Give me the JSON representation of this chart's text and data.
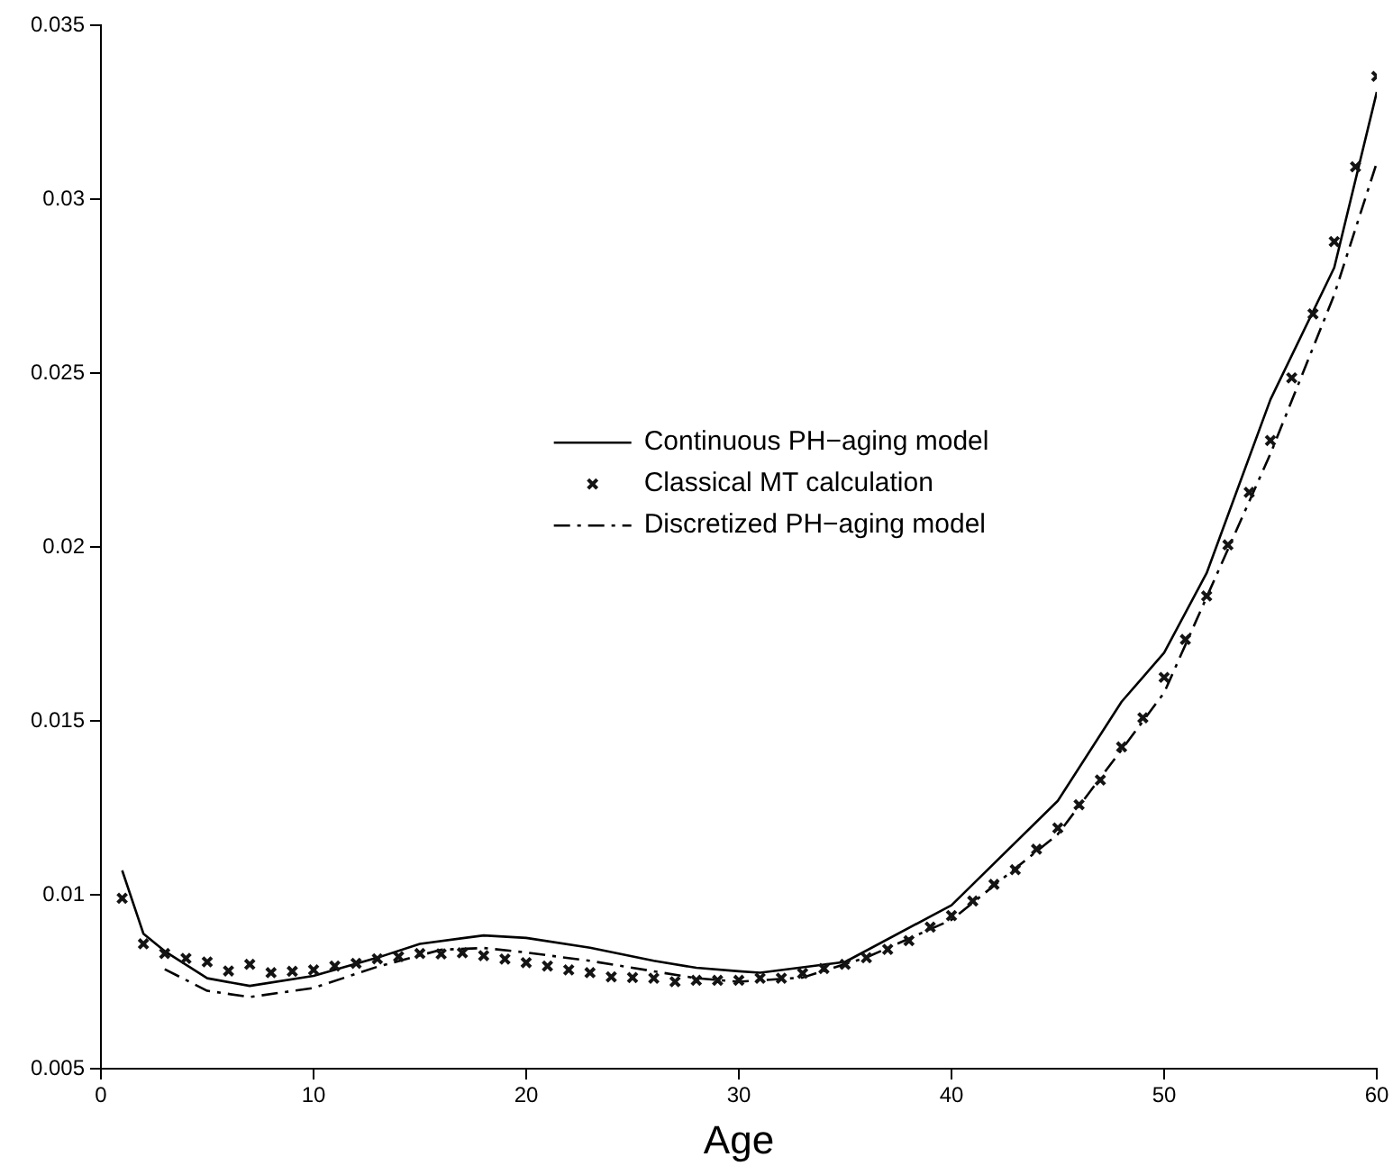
{
  "chart_data": {
    "type": "line",
    "xlabel": "Age",
    "xlim": [
      0,
      60
    ],
    "xticks": [
      0,
      10,
      20,
      30,
      40,
      50,
      60
    ],
    "ylim": [
      0.005,
      0.035
    ],
    "yticks": [
      0.005,
      0.01,
      0.015,
      0.02,
      0.025,
      0.03,
      0.035
    ],
    "grid": false,
    "legend": "center",
    "series": [
      {
        "name": "Continuous PH−aging model",
        "type": "line",
        "color": "#000000",
        "line_style": "solid",
        "marker": "none",
        "x": [
          1,
          2,
          3,
          5,
          7,
          10,
          13,
          15,
          18,
          20,
          23,
          26,
          28,
          30,
          31,
          35,
          40,
          45,
          48,
          50,
          52,
          55,
          58,
          60
        ],
        "values": [
          0.0107,
          0.00888,
          0.00838,
          0.0076,
          0.00738,
          0.00767,
          0.00819,
          0.00859,
          0.00883,
          0.00876,
          0.00848,
          0.0081,
          0.0079,
          0.0078,
          0.00776,
          0.00807,
          0.0097,
          0.0127,
          0.01555,
          0.01696,
          0.01925,
          0.02424,
          0.02803,
          0.03308
        ]
      },
      {
        "name": "Classical MT calculation",
        "type": "scatter",
        "color": "#141414",
        "marker": "cross",
        "x": [
          1,
          2,
          3,
          4,
          5,
          6,
          7,
          8,
          9,
          10,
          11,
          12,
          13,
          14,
          15,
          16,
          17,
          18,
          19,
          20,
          21,
          22,
          23,
          24,
          25,
          26,
          27,
          28,
          29,
          30,
          31,
          32,
          33,
          34,
          35,
          36,
          37,
          38,
          39,
          40,
          41,
          42,
          43,
          44,
          45,
          46,
          47,
          48,
          49,
          50,
          51,
          52,
          53,
          54,
          55,
          56,
          57,
          58,
          59,
          60
        ],
        "values": [
          0.0099,
          0.00859,
          0.00831,
          0.00817,
          0.00807,
          0.00781,
          0.008,
          0.00776,
          0.0078,
          0.00784,
          0.00795,
          0.00803,
          0.00816,
          0.00822,
          0.00831,
          0.0083,
          0.00833,
          0.00825,
          0.00815,
          0.00805,
          0.00795,
          0.00784,
          0.00776,
          0.00764,
          0.00762,
          0.0076,
          0.0075,
          0.00754,
          0.00754,
          0.00754,
          0.0076,
          0.0076,
          0.00774,
          0.00788,
          0.008,
          0.00819,
          0.00843,
          0.00868,
          0.00907,
          0.0094,
          0.00982,
          0.0103,
          0.01072,
          0.01131,
          0.01192,
          0.01259,
          0.0133,
          0.01425,
          0.01509,
          0.01625,
          0.01734,
          0.01859,
          0.02006,
          0.02157,
          0.02306,
          0.02486,
          0.0267,
          0.02878,
          0.03093,
          0.03353
        ]
      },
      {
        "name": "Discretized PH−aging model",
        "type": "line",
        "color": "#000000",
        "line_style": "dashed",
        "marker": "none",
        "x": [
          3,
          5,
          7,
          10,
          13,
          16,
          18,
          20,
          23,
          26,
          28,
          30,
          33,
          36,
          40,
          45,
          48,
          50,
          55,
          58,
          60
        ],
        "values": [
          0.00786,
          0.00724,
          0.00706,
          0.00732,
          0.00793,
          0.00842,
          0.00847,
          0.00834,
          0.0081,
          0.0078,
          0.0076,
          0.0075,
          0.00762,
          0.0082,
          0.00928,
          0.01174,
          0.01417,
          0.01581,
          0.02268,
          0.02725,
          0.03105
        ]
      }
    ]
  }
}
